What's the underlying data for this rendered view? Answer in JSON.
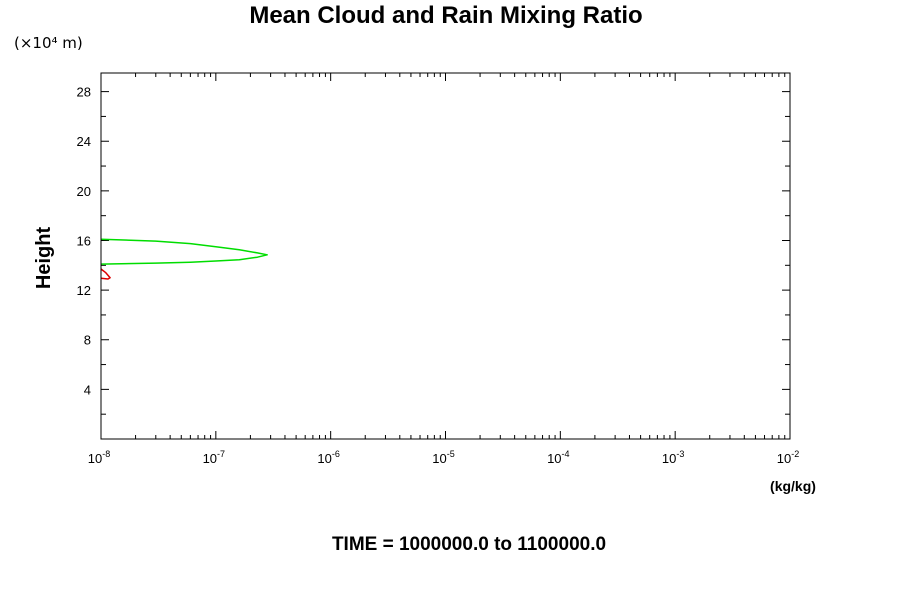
{
  "chart_data": {
    "type": "line",
    "title": "Mean Cloud and Rain Mixing Ratio",
    "y_units": "(×10⁴ m)",
    "ylabel": "Height",
    "xlabel": "(kg/kg)",
    "footer": "TIME = 1000000.0 to 1100000.0",
    "x_scale": "log",
    "xlim": [
      1e-08,
      0.01
    ],
    "ylim": [
      0,
      29.5
    ],
    "x_ticks": [
      {
        "base": "10",
        "exp": "-8"
      },
      {
        "base": "10",
        "exp": "-7"
      },
      {
        "base": "10",
        "exp": "-6"
      },
      {
        "base": "10",
        "exp": "-5"
      },
      {
        "base": "10",
        "exp": "-4"
      },
      {
        "base": "10",
        "exp": "-3"
      },
      {
        "base": "10",
        "exp": "-2"
      }
    ],
    "y_ticks": [
      "4",
      "8",
      "12",
      "16",
      "20",
      "24",
      "28"
    ],
    "grid": false,
    "series": [
      {
        "color": "#00dd00",
        "points": [
          [
            1e-08,
            16.1
          ],
          [
            3e-08,
            15.95
          ],
          [
            6e-08,
            15.75
          ],
          [
            1e-07,
            15.5
          ],
          [
            1.6e-07,
            15.25
          ],
          [
            2.3e-07,
            15.0
          ],
          [
            2.8e-07,
            14.85
          ],
          [
            2.3e-07,
            14.65
          ],
          [
            1.6e-07,
            14.45
          ],
          [
            1e-07,
            14.35
          ],
          [
            6e-08,
            14.25
          ],
          [
            3e-08,
            14.18
          ],
          [
            1e-08,
            14.1
          ]
        ]
      },
      {
        "color": "#dd0000",
        "points": [
          [
            1e-08,
            13.7
          ],
          [
            1.1e-08,
            13.4
          ],
          [
            1.2e-08,
            13.0
          ],
          [
            1.15e-08,
            12.9
          ],
          [
            1e-08,
            12.95
          ]
        ]
      }
    ]
  }
}
